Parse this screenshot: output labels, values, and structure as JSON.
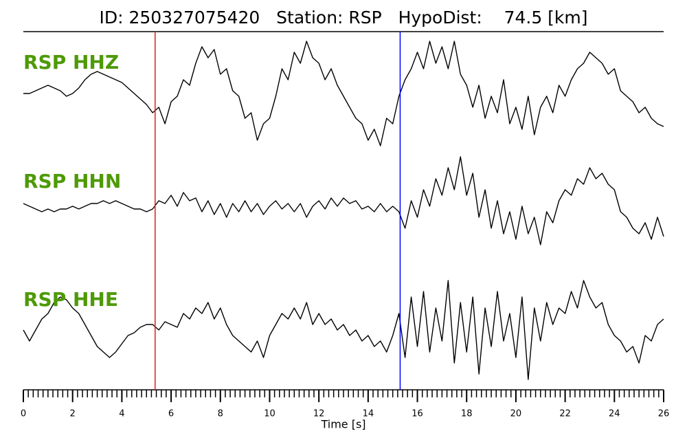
{
  "chart_data": {
    "type": "line",
    "title": "ID: 250327075420   Station: RSP   HypoDist:    74.5 [km]",
    "xlabel": "Time [s]",
    "xlim": [
      0,
      26
    ],
    "xticks": [
      0,
      2,
      4,
      6,
      8,
      10,
      12,
      14,
      16,
      18,
      20,
      22,
      24,
      26
    ],
    "xminor": 0.2,
    "ylim": [
      -1,
      1
    ],
    "label_color": "#4e9a06",
    "picks": [
      {
        "x": 5.35,
        "color": "#e41a1c"
      },
      {
        "x": 15.3,
        "color": "#0000ff"
      }
    ],
    "x": [
      0,
      0.25,
      0.5,
      0.75,
      1,
      1.25,
      1.5,
      1.75,
      2,
      2.25,
      2.5,
      2.75,
      3,
      3.25,
      3.5,
      3.75,
      4,
      4.25,
      4.5,
      4.75,
      5,
      5.25,
      5.5,
      5.75,
      6,
      6.25,
      6.5,
      6.75,
      7,
      7.25,
      7.5,
      7.75,
      8,
      8.25,
      8.5,
      8.75,
      9,
      9.25,
      9.5,
      9.75,
      10,
      10.25,
      10.5,
      10.75,
      11,
      11.25,
      11.5,
      11.75,
      12,
      12.25,
      12.5,
      12.75,
      13,
      13.25,
      13.5,
      13.75,
      14,
      14.25,
      14.5,
      14.75,
      15,
      15.25,
      15.5,
      15.75,
      16,
      16.25,
      16.5,
      16.75,
      17,
      17.25,
      17.5,
      17.75,
      18,
      18.25,
      18.5,
      18.75,
      19,
      19.25,
      19.5,
      19.75,
      20,
      20.25,
      20.5,
      20.75,
      21,
      21.25,
      21.5,
      21.75,
      22,
      22.25,
      22.5,
      22.75,
      23,
      23.25,
      23.5,
      23.75,
      24,
      24.25,
      24.5,
      24.75,
      25,
      25.25,
      25.5,
      25.75,
      26
    ],
    "series": [
      {
        "name": "RSP HHZ",
        "color": "#000000",
        "values": [
          0.05,
          0.05,
          0.1,
          0.15,
          0.2,
          0.15,
          0.1,
          0.0,
          0.05,
          0.15,
          0.3,
          0.4,
          0.45,
          0.4,
          0.35,
          0.3,
          0.25,
          0.15,
          0.05,
          -0.05,
          -0.15,
          -0.3,
          -0.2,
          -0.5,
          -0.1,
          0.0,
          0.3,
          0.2,
          0.6,
          0.9,
          0.7,
          0.85,
          0.4,
          0.5,
          0.1,
          0.0,
          -0.4,
          -0.3,
          -0.8,
          -0.5,
          -0.4,
          0.0,
          0.5,
          0.3,
          0.8,
          0.6,
          1.0,
          0.7,
          0.6,
          0.3,
          0.5,
          0.2,
          0.0,
          -0.2,
          -0.4,
          -0.5,
          -0.8,
          -0.6,
          -0.9,
          -0.4,
          -0.5,
          0.0,
          0.3,
          0.5,
          0.8,
          0.5,
          1.0,
          0.6,
          0.9,
          0.5,
          1.0,
          0.4,
          0.2,
          -0.2,
          0.2,
          -0.4,
          0.0,
          -0.3,
          0.3,
          -0.5,
          -0.2,
          -0.6,
          0.0,
          -0.7,
          -0.2,
          0.0,
          -0.3,
          0.2,
          0.0,
          0.3,
          0.5,
          0.6,
          0.8,
          0.7,
          0.6,
          0.4,
          0.5,
          0.1,
          0.0,
          -0.1,
          -0.3,
          -0.2,
          -0.4,
          -0.5,
          -0.55
        ]
      },
      {
        "name": "RSP HHN",
        "color": "#000000",
        "values": [
          0.05,
          0.0,
          -0.05,
          -0.1,
          -0.05,
          -0.1,
          -0.05,
          -0.05,
          0.0,
          -0.05,
          0.0,
          0.05,
          0.05,
          0.1,
          0.05,
          0.1,
          0.05,
          0.0,
          -0.05,
          -0.05,
          -0.1,
          -0.05,
          0.1,
          0.05,
          0.2,
          0.0,
          0.25,
          0.1,
          0.15,
          -0.1,
          0.1,
          -0.15,
          0.05,
          -0.2,
          0.05,
          -0.1,
          0.1,
          -0.1,
          0.05,
          -0.15,
          0.0,
          0.1,
          -0.05,
          0.05,
          -0.1,
          0.05,
          -0.2,
          0.0,
          0.1,
          -0.05,
          0.15,
          0.0,
          0.15,
          0.05,
          0.1,
          -0.05,
          0.0,
          -0.1,
          0.05,
          -0.1,
          0.0,
          -0.1,
          -0.4,
          0.1,
          -0.2,
          0.3,
          0.0,
          0.5,
          0.2,
          0.7,
          0.3,
          0.9,
          0.2,
          0.6,
          -0.2,
          0.3,
          -0.4,
          0.1,
          -0.5,
          -0.1,
          -0.6,
          0.0,
          -0.5,
          -0.2,
          -0.7,
          -0.1,
          -0.3,
          0.1,
          0.3,
          0.2,
          0.5,
          0.4,
          0.7,
          0.5,
          0.6,
          0.4,
          0.3,
          -0.1,
          -0.2,
          -0.4,
          -0.5,
          -0.3,
          -0.6,
          -0.2,
          -0.55
        ]
      },
      {
        "name": "RSP HHE",
        "color": "#000000",
        "values": [
          -0.1,
          -0.3,
          -0.1,
          0.1,
          0.2,
          0.4,
          0.5,
          0.45,
          0.3,
          0.2,
          0.0,
          -0.2,
          -0.4,
          -0.5,
          -0.6,
          -0.5,
          -0.35,
          -0.2,
          -0.15,
          -0.05,
          0.0,
          0.0,
          -0.1,
          0.05,
          0.0,
          -0.05,
          0.2,
          0.1,
          0.3,
          0.2,
          0.4,
          0.1,
          0.3,
          0.0,
          -0.2,
          -0.3,
          -0.4,
          -0.5,
          -0.3,
          -0.6,
          -0.2,
          0.0,
          0.2,
          0.1,
          0.3,
          0.1,
          0.4,
          0.0,
          0.2,
          0.0,
          0.1,
          -0.1,
          0.0,
          -0.2,
          -0.1,
          -0.3,
          -0.2,
          -0.4,
          -0.3,
          -0.5,
          -0.2,
          0.2,
          -0.6,
          0.5,
          -0.4,
          0.6,
          -0.5,
          0.3,
          -0.3,
          0.8,
          -0.7,
          0.4,
          -0.5,
          0.5,
          -0.9,
          0.3,
          -0.4,
          0.6,
          -0.3,
          0.2,
          -0.6,
          0.5,
          -1.0,
          0.3,
          -0.3,
          0.4,
          0.0,
          0.3,
          0.2,
          0.6,
          0.3,
          0.8,
          0.5,
          0.3,
          0.4,
          0.0,
          -0.2,
          -0.3,
          -0.5,
          -0.4,
          -0.7,
          -0.2,
          -0.3,
          0.0,
          0.1
        ]
      }
    ]
  }
}
